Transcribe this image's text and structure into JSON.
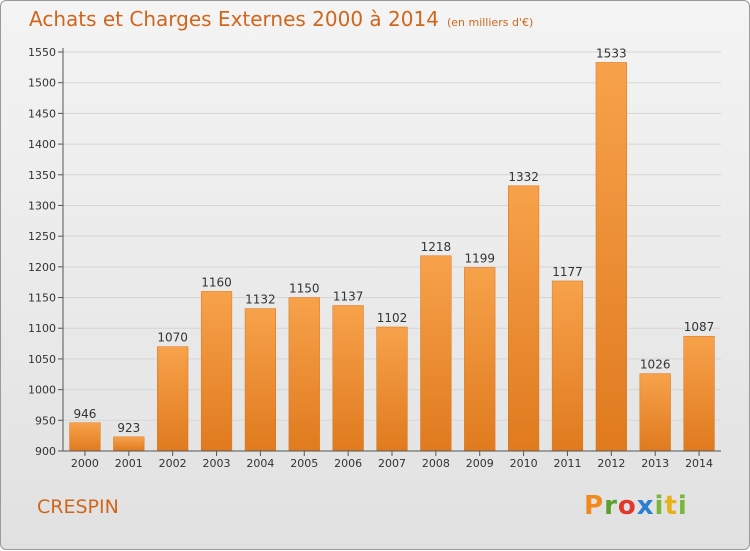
{
  "title": "Achats et Charges Externes 2000 à 2014",
  "unit_label": "(en milliers d'€)",
  "city": "CRESPIN",
  "brand": "Proxiti",
  "colors": {
    "bar_light": "#f7a24b",
    "bar_dark": "#e07a1e",
    "title": "#d0661c",
    "grid": "#d6d6d6"
  },
  "chart_data": {
    "type": "bar",
    "categories": [
      "2000",
      "2001",
      "2002",
      "2003",
      "2004",
      "2005",
      "2006",
      "2007",
      "2008",
      "2009",
      "2010",
      "2011",
      "2012",
      "2013",
      "2014"
    ],
    "values": [
      946,
      923,
      1070,
      1160,
      1132,
      1150,
      1137,
      1102,
      1218,
      1199,
      1332,
      1177,
      1533,
      1026,
      1087
    ],
    "ylim": [
      900,
      1550
    ],
    "yticks": [
      900,
      950,
      1000,
      1050,
      1100,
      1150,
      1200,
      1250,
      1300,
      1350,
      1400,
      1450,
      1500,
      1550
    ],
    "grid": true,
    "data_labels": true
  }
}
